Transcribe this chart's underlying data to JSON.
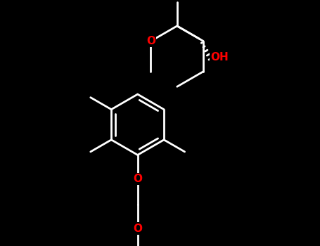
{
  "bg_color": "#000000",
  "bond_color": "#ffffff",
  "oxygen_color": "#ff0000",
  "lw": 2.0,
  "font_size": 11,
  "figsize": [
    4.55,
    3.5
  ],
  "dpi": 100,
  "xlim": [
    0,
    10
  ],
  "ylim": [
    0,
    7.7
  ]
}
